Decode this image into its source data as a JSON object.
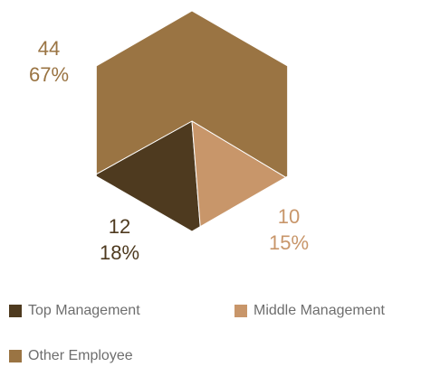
{
  "chart_data": {
    "type": "pie",
    "slices": [
      {
        "name": "Top Management",
        "value": 12,
        "percent": "18%",
        "color": "#4e3a1f"
      },
      {
        "name": "Middle Management",
        "value": 10,
        "percent": "15%",
        "color": "#c8966a"
      },
      {
        "name": "Other Employee",
        "value": 44,
        "percent": "67%",
        "color": "#9a7443"
      }
    ],
    "labels": {
      "other_value": "44",
      "other_percent": "67%",
      "top_value": "12",
      "top_percent": "18%",
      "middle_value": "10",
      "middle_percent": "15%"
    },
    "legend": [
      "Top Management",
      "Middle Management",
      "Other Employee"
    ],
    "legend_placement": "bottom"
  }
}
